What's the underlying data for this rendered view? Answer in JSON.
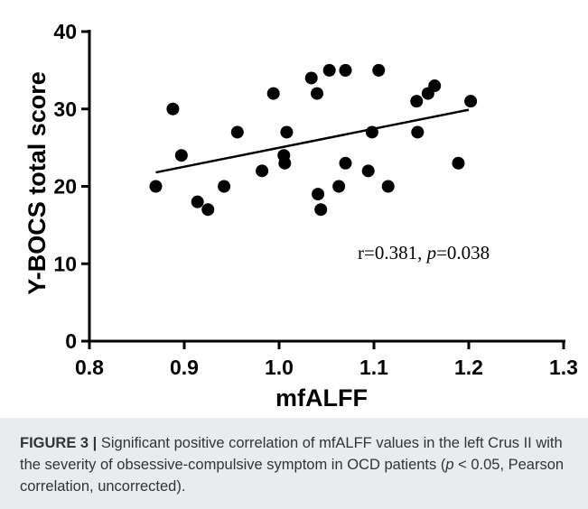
{
  "chart_data": {
    "type": "scatter",
    "xlabel": "mfALFF",
    "ylabel": "Y-BOCS total score",
    "xlim": [
      0.8,
      1.3
    ],
    "ylim": [
      0,
      40
    ],
    "xticks": [
      "0.8",
      "0.9",
      "1.0",
      "1.1",
      "1.2",
      "1.3"
    ],
    "yticks": [
      "0",
      "10",
      "20",
      "30",
      "40"
    ],
    "grid": false,
    "points": [
      {
        "x": 0.87,
        "y": 20
      },
      {
        "x": 0.888,
        "y": 30
      },
      {
        "x": 0.897,
        "y": 24
      },
      {
        "x": 0.914,
        "y": 18
      },
      {
        "x": 0.925,
        "y": 17
      },
      {
        "x": 0.942,
        "y": 20
      },
      {
        "x": 0.956,
        "y": 27
      },
      {
        "x": 0.982,
        "y": 22
      },
      {
        "x": 0.994,
        "y": 32
      },
      {
        "x": 1.005,
        "y": 24
      },
      {
        "x": 1.006,
        "y": 23
      },
      {
        "x": 1.008,
        "y": 27
      },
      {
        "x": 1.034,
        "y": 34
      },
      {
        "x": 1.04,
        "y": 32
      },
      {
        "x": 1.041,
        "y": 19
      },
      {
        "x": 1.044,
        "y": 17
      },
      {
        "x": 1.053,
        "y": 35
      },
      {
        "x": 1.063,
        "y": 20
      },
      {
        "x": 1.07,
        "y": 35
      },
      {
        "x": 1.07,
        "y": 23
      },
      {
        "x": 1.094,
        "y": 22
      },
      {
        "x": 1.098,
        "y": 27
      },
      {
        "x": 1.105,
        "y": 35
      },
      {
        "x": 1.115,
        "y": 20
      },
      {
        "x": 1.145,
        "y": 31
      },
      {
        "x": 1.146,
        "y": 27
      },
      {
        "x": 1.157,
        "y": 32
      },
      {
        "x": 1.164,
        "y": 33
      },
      {
        "x": 1.189,
        "y": 23
      },
      {
        "x": 1.202,
        "y": 31
      }
    ],
    "regression_line": {
      "x": [
        0.87,
        1.2
      ],
      "y": [
        21.8,
        29.9
      ]
    },
    "annotation": {
      "prefix": "r=0.381, ",
      "p_symbol": "p",
      "suffix": "=0.038"
    }
  },
  "caption": {
    "label": "FIGURE 3 |",
    "text_1": " Significant positive correlation of mfALFF values in the left Crus II with the severity of obsessive-compulsive symptom in OCD patients (",
    "p_symbol": "p",
    "text_2": " < 0.05, Pearson correlation, uncorrected)."
  },
  "colors": {
    "points": "#000000",
    "axes": "#000000",
    "caption_background": "#e8ecef",
    "caption_text": "#333333"
  }
}
